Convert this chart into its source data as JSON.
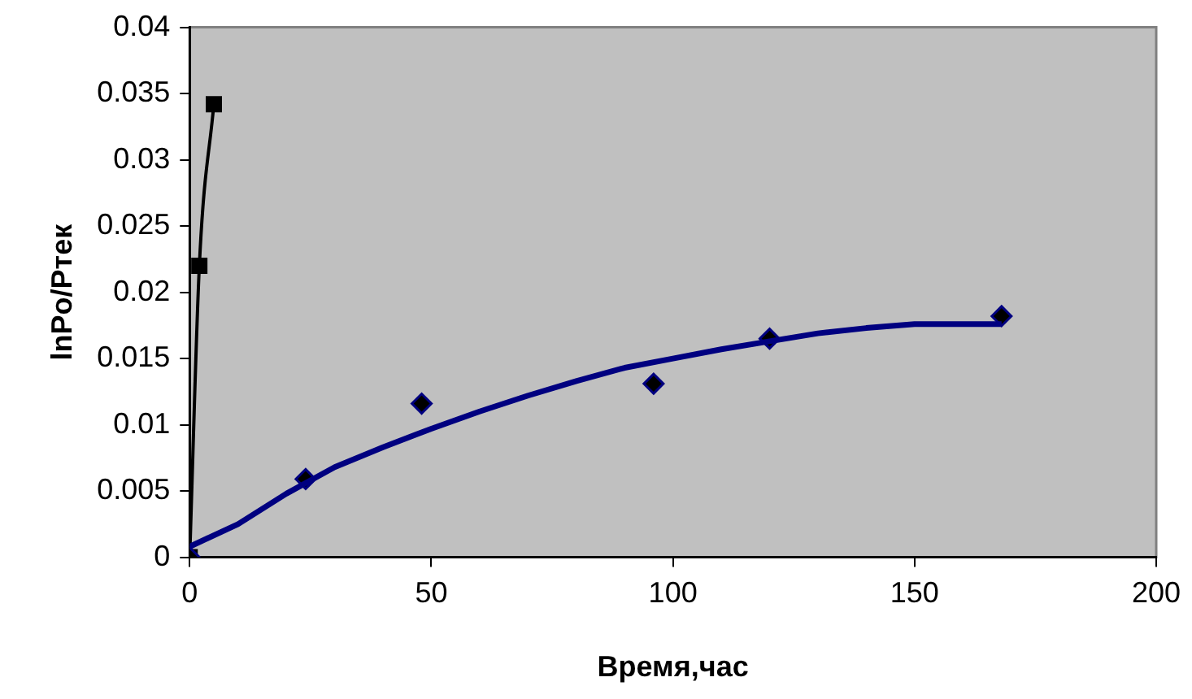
{
  "chart_data": {
    "type": "scatter",
    "xlabel": "Время,час",
    "ylabel": "lnPo/Ртек",
    "xlim": [
      0,
      200
    ],
    "xticks": [
      0,
      50,
      100,
      150,
      200
    ],
    "ylim": [
      0,
      0.04
    ],
    "yticks": [
      0,
      0.005,
      0.01,
      0.015,
      0.02,
      0.025,
      0.03,
      0.035,
      0.04
    ],
    "grid": false,
    "legend": false,
    "series": [
      {
        "type": "line",
        "color": "#000080",
        "marker": "none",
        "x": [
          0,
          10,
          20,
          30,
          40,
          50,
          60,
          70,
          80,
          90,
          100,
          110,
          120,
          130,
          140,
          150,
          168
        ],
        "values": [
          0.0008,
          0.0025,
          0.0048,
          0.0068,
          0.0083,
          0.0097,
          0.011,
          0.0122,
          0.0133,
          0.0143,
          0.015,
          0.0157,
          0.0163,
          0.0169,
          0.0173,
          0.0176,
          0.0176
        ]
      },
      {
        "type": "scatter",
        "color": "#000080",
        "marker": "diamond",
        "x": [
          0,
          24,
          48,
          96,
          120,
          168
        ],
        "values": [
          0,
          0.0059,
          0.0116,
          0.0131,
          0.0165,
          0.0182
        ]
      },
      {
        "type": "line",
        "color": "#000000",
        "marker": "square",
        "x": [
          0,
          2,
          5
        ],
        "values": [
          0,
          0.022,
          0.0342
        ]
      }
    ]
  }
}
